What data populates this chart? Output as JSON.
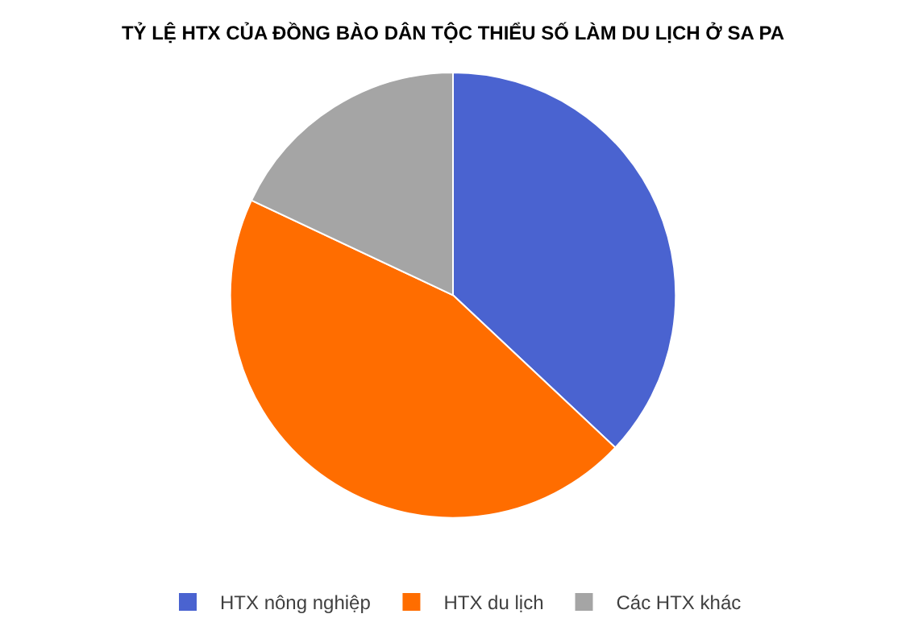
{
  "chart_data": {
    "type": "pie",
    "title": "TỶ LỆ HTX CỦA ĐỒNG BÀO DÂN TỘC THIỂU SỐ LÀM DU LỊCH Ở SA PA",
    "categories": [
      "HTX nông nghiệp",
      "HTX du lịch",
      "Các HTX khác"
    ],
    "values": [
      37,
      45,
      18
    ],
    "colors": [
      "#4a63d0",
      "#ff6d00",
      "#a5a5a5"
    ],
    "legend": "bottom"
  }
}
